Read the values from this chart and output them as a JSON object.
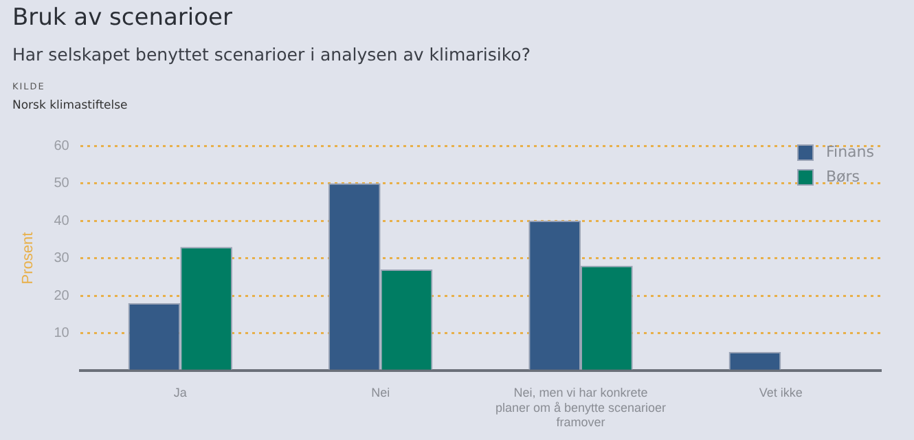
{
  "chart_data": {
    "type": "bar",
    "title": "Bruk av scenarioer",
    "subtitle": "Har selskapet benyttet scenarioer i analysen av klimarisiko?",
    "annotations": [
      "KILDE",
      "Norsk klimastiftelse"
    ],
    "ylabel": "Prosent",
    "categories": [
      "Ja",
      "Nei",
      "Nei, men vi har konkrete planer om å benytte scenarioer framover",
      "Vet ikke"
    ],
    "series": [
      {
        "name": "Finans",
        "color": "#345a87",
        "values": [
          18,
          50,
          40,
          5
        ]
      },
      {
        "name": "Børs",
        "color": "#007d63",
        "values": [
          33,
          27,
          28,
          null
        ]
      }
    ],
    "ylim": [
      0,
      60
    ],
    "yticks": [
      {
        "value": 0,
        "label": null
      },
      10,
      20,
      30,
      40,
      50,
      60
    ],
    "grid": "y",
    "legend": "top right"
  }
}
